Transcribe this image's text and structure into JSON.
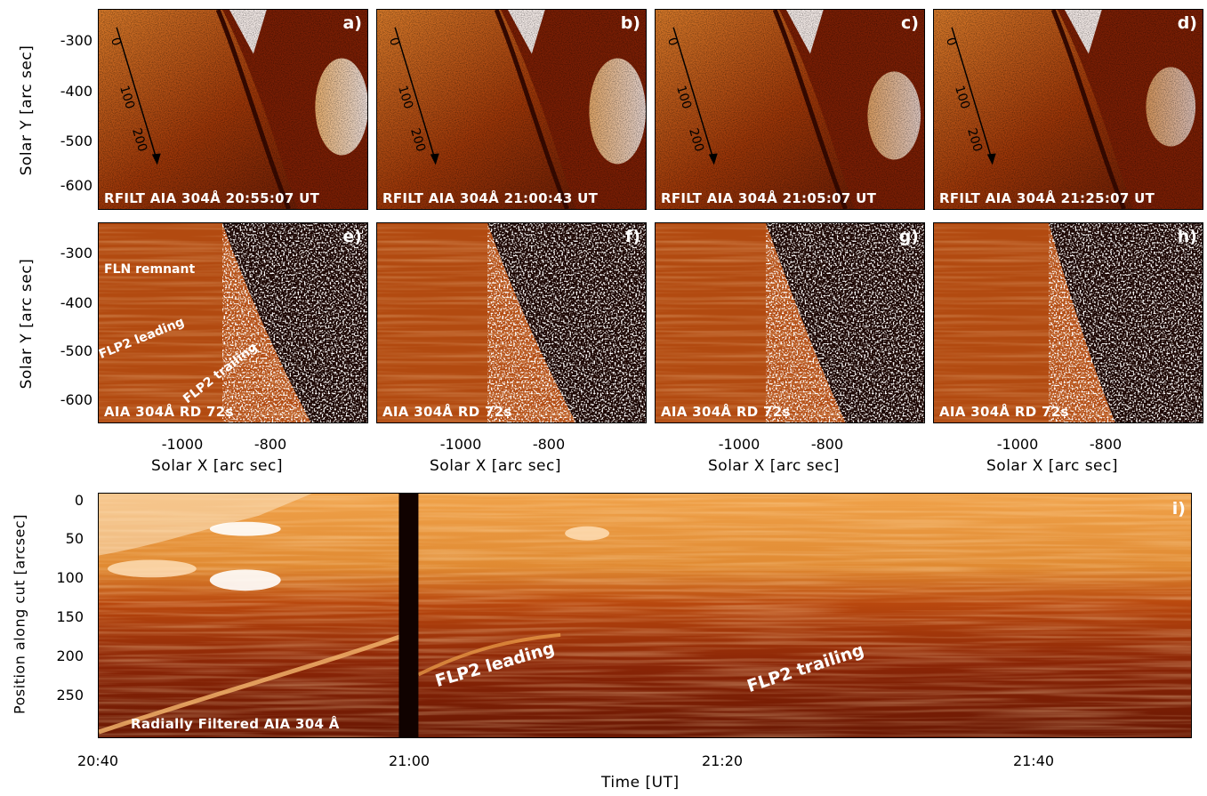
{
  "top_row": {
    "panels": [
      {
        "id": "a",
        "label": "a)",
        "caption": "RFILT AIA 304Å 20:55:07 UT"
      },
      {
        "id": "b",
        "label": "b)",
        "caption": "RFILT AIA 304Å 21:00:43 UT"
      },
      {
        "id": "c",
        "label": "c)",
        "caption": "RFILT AIA 304Å 21:05:07 UT"
      },
      {
        "id": "d",
        "label": "d)",
        "caption": "RFILT AIA 304Å 21:25:07 UT"
      }
    ],
    "cut_ticks": [
      "0",
      "100",
      "200"
    ]
  },
  "mid_row": {
    "panels": [
      {
        "id": "e",
        "label": "e)",
        "caption": "AIA 304Å RD 72s"
      },
      {
        "id": "f",
        "label": "f)",
        "caption": "AIA 304Å RD 72s"
      },
      {
        "id": "g",
        "label": "g)",
        "caption": "AIA 304Å RD 72s"
      },
      {
        "id": "h",
        "label": "h)",
        "caption": "AIA 304Å RD 72s"
      }
    ],
    "annotations": {
      "fln": "FLN remnant",
      "leading": "FLP2 leading",
      "trailing": "FLP2 trailing"
    }
  },
  "y_axis_label": "Solar Y [arc sec]",
  "y_ticks": [
    "-300",
    "-400",
    "-500",
    "-600"
  ],
  "x_axis_label": "Solar X [arc sec]",
  "x_ticks": [
    "-1000",
    "-800"
  ],
  "timeslice": {
    "label": "i)",
    "caption": "Radially Filtered AIA 304 Å",
    "leading": "FLP2 leading",
    "trailing": "FLP2 trailing",
    "y_label": "Position along cut [arcsec]",
    "y_ticks": [
      "0",
      "50",
      "100",
      "150",
      "200",
      "250"
    ],
    "x_label": "Time [UT]",
    "x_ticks": [
      "20:40",
      "21:00",
      "21:20",
      "21:40"
    ]
  },
  "colors": {
    "dark": "#5a0f02",
    "mid": "#b94a0c",
    "bright": "#f0a24a",
    "white": "#ffffff"
  }
}
